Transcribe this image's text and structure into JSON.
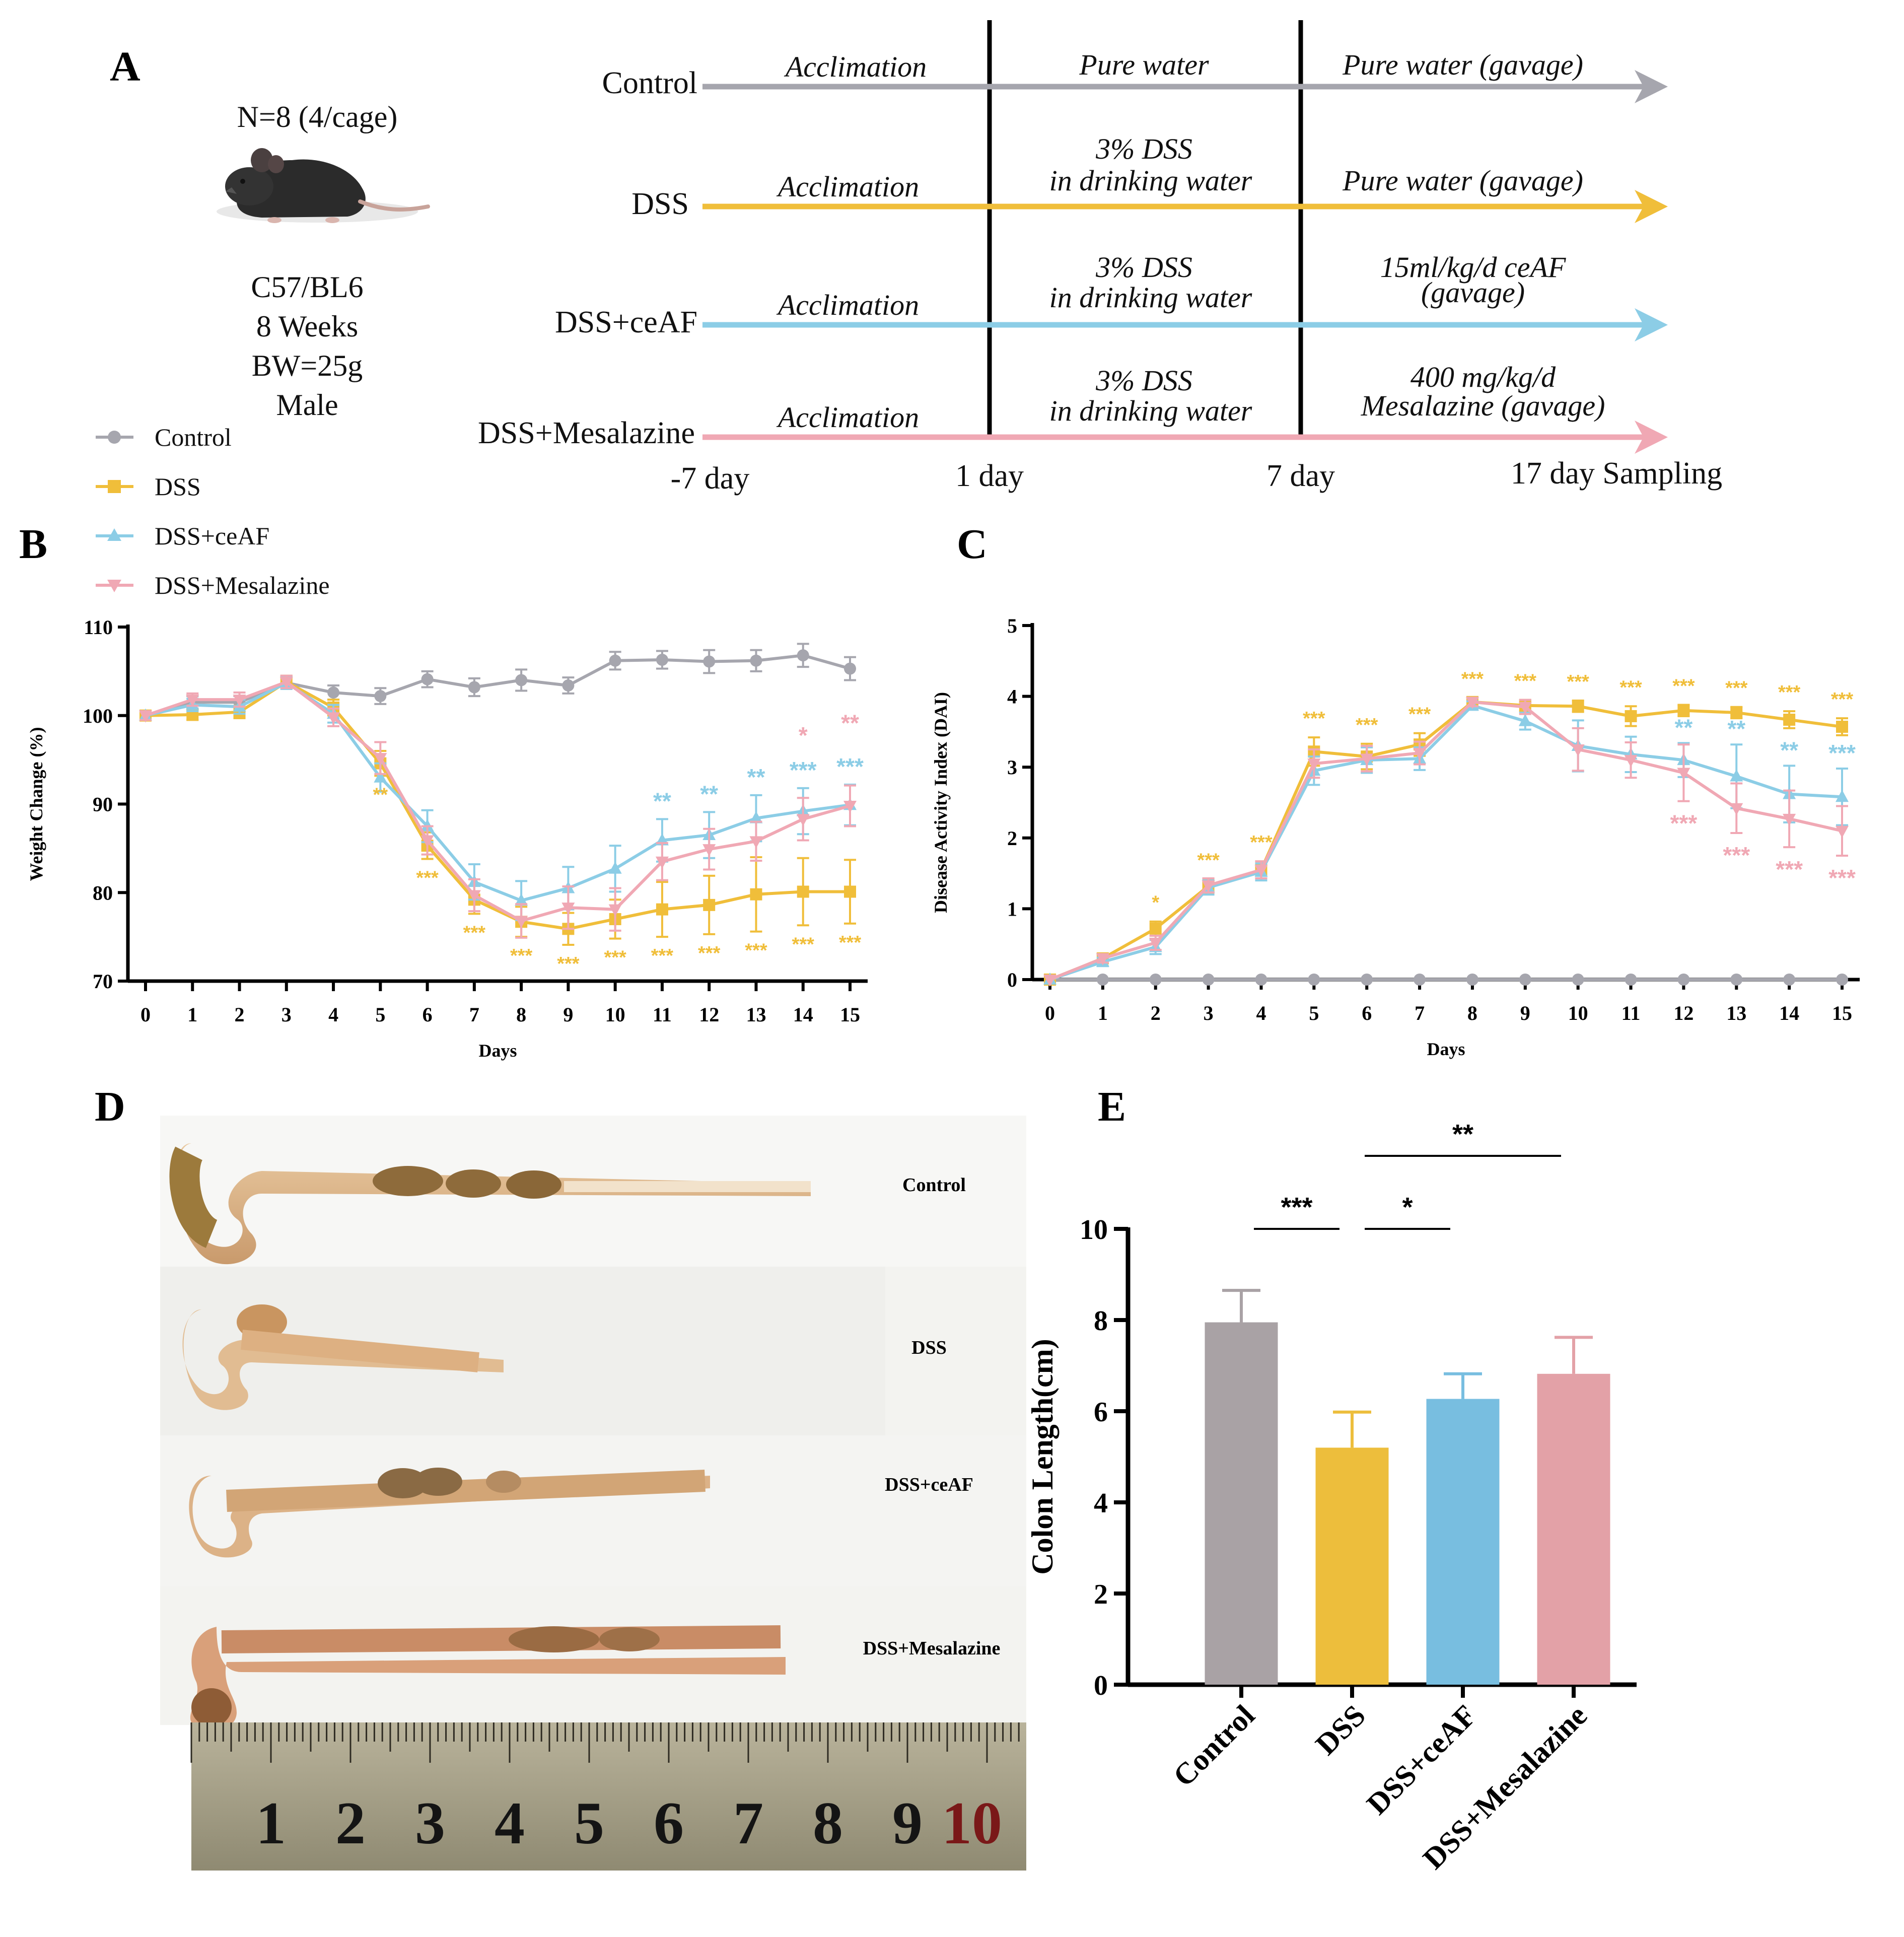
{
  "panels": {
    "a": "A",
    "b": "B",
    "c": "C",
    "d": "D",
    "e": "E"
  },
  "colors": {
    "control": "#A6A6AE",
    "dss": "#F0BE3A",
    "ceaf": "#8CCDE6",
    "mesalazine": "#F0A8B4",
    "control_bar": "#A9A2A5",
    "dss_bar": "#EDBE3C",
    "ceaf_bar": "#78BEE0",
    "mesalazine_bar": "#E3A1A7"
  },
  "design": {
    "mouse": {
      "n": "N=8 (4/cage)",
      "strain": "C57/BL6",
      "age": "8 Weeks",
      "bw": "BW=25g",
      "sex": "Male"
    },
    "rows": [
      {
        "label": "Control",
        "phase1": "Acclimation",
        "phase2": [
          "Pure water"
        ],
        "phase3": [
          "Pure water (gavage)"
        ]
      },
      {
        "label": "DSS",
        "phase1": "Acclimation",
        "phase2": [
          "3% DSS",
          "in drinking water"
        ],
        "phase3": [
          "Pure water (gavage)"
        ]
      },
      {
        "label": "DSS+ceAF",
        "phase1": "Acclimation",
        "phase2": [
          "3% DSS",
          "in drinking water"
        ],
        "phase3": [
          "15ml/kg/d ceAF",
          "(gavage)"
        ]
      },
      {
        "label": "DSS+Mesalazine",
        "phase1": "Acclimation",
        "phase2": [
          "3% DSS",
          "in drinking water"
        ],
        "phase3": [
          "400 mg/kg/d",
          "Mesalazine (gavage)"
        ]
      }
    ],
    "timeline": [
      "-7 day",
      "1 day",
      "7 day",
      "17 day Sampling"
    ]
  },
  "legend": [
    "Control",
    "DSS",
    "DSS+ceAF",
    "DSS+Mesalazine"
  ],
  "chart_data": [
    {
      "type": "line",
      "id": "B",
      "xlabel": "Days",
      "ylabel": "Weight Change (%)",
      "x": [
        0,
        1,
        2,
        3,
        4,
        5,
        6,
        7,
        8,
        9,
        10,
        11,
        12,
        13,
        14,
        15
      ],
      "ylim": [
        70,
        110
      ],
      "yticks": [
        70,
        80,
        90,
        100,
        110
      ],
      "series": [
        {
          "name": "Control",
          "values": [
            100,
            101.5,
            101.5,
            103.7,
            102.6,
            102.2,
            104.1,
            103.2,
            104,
            103.4,
            106.2,
            106.3,
            106.1,
            106.2,
            106.8,
            105.3
          ],
          "errors": [
            0.5,
            0.7,
            0.7,
            0.6,
            0.8,
            0.9,
            0.9,
            1,
            1.2,
            0.9,
            1,
            1,
            1.3,
            1.2,
            1.3,
            1.3
          ]
        },
        {
          "name": "DSS",
          "values": [
            100,
            100.1,
            100.4,
            103.8,
            100.9,
            94.6,
            85.3,
            79.2,
            76.7,
            75.9,
            77,
            78.1,
            78.6,
            79.8,
            80.1,
            80.1
          ],
          "errors": [
            0.5,
            0.6,
            0.7,
            0.7,
            0.9,
            1.4,
            1.5,
            1.6,
            1.7,
            1.8,
            2.2,
            3.1,
            3.3,
            4.2,
            3.8,
            3.6
          ]
        },
        {
          "name": "DSS+ceAF",
          "values": [
            100,
            101.2,
            101,
            103.7,
            100.2,
            93,
            87.5,
            81.2,
            79.1,
            80.5,
            82.7,
            85.9,
            86.5,
            88.4,
            89.2,
            89.9
          ],
          "errors": [
            0.5,
            0.7,
            0.8,
            0.7,
            1,
            1.6,
            1.8,
            2,
            2.2,
            2.4,
            2.6,
            2.4,
            2.6,
            2.6,
            2.6,
            2.3
          ]
        },
        {
          "name": "DSS+Mesalazine",
          "values": [
            100,
            101.8,
            101.8,
            103.8,
            99.8,
            95.2,
            85.9,
            79.7,
            76.8,
            78.3,
            78.1,
            83.5,
            84.9,
            85.8,
            88.3,
            89.8
          ],
          "errors": [
            0.5,
            0.7,
            0.8,
            0.7,
            1,
            1.8,
            1.6,
            1.8,
            1.9,
            2.4,
            2.4,
            2.1,
            2.3,
            2.2,
            2.4,
            2.3
          ]
        }
      ],
      "annotations": [
        {
          "x": 5,
          "rows": [
            {
              "t": "**",
              "c": "dss"
            }
          ]
        },
        {
          "x": 6,
          "rows": [
            {
              "t": "***",
              "c": "dss"
            }
          ]
        },
        {
          "x": 7,
          "rows": [
            {
              "t": "***",
              "c": "dss"
            }
          ]
        },
        {
          "x": 8,
          "rows": [
            {
              "t": "***",
              "c": "dss"
            }
          ]
        },
        {
          "x": 9,
          "rows": [
            {
              "t": "***",
              "c": "dss"
            }
          ]
        },
        {
          "x": 10,
          "rows": [
            {
              "t": "***",
              "c": "dss"
            }
          ]
        },
        {
          "x": 11,
          "rows": [
            {
              "t": "***",
              "c": "dss"
            }
          ]
        },
        {
          "x": 12,
          "rows": [
            {
              "t": "***",
              "c": "dss"
            }
          ]
        },
        {
          "x": 13,
          "rows": [
            {
              "t": "***",
              "c": "dss"
            }
          ]
        },
        {
          "x": 14,
          "rows": [
            {
              "t": "***",
              "c": "dss"
            }
          ]
        },
        {
          "x": 15,
          "rows": [
            {
              "t": "***",
              "c": "dss"
            }
          ]
        },
        {
          "x": 11,
          "rows": [
            {
              "t": "**",
              "c": "ceaf"
            }
          ]
        },
        {
          "x": 12,
          "rows": [
            {
              "t": "**",
              "c": "ceaf"
            }
          ]
        },
        {
          "x": 13,
          "rows": [
            {
              "t": "**",
              "c": "ceaf"
            }
          ]
        },
        {
          "x": 14,
          "rows": [
            {
              "t": "***",
              "c": "ceaf"
            },
            {
              "t": "*",
              "c": "mesalazine"
            }
          ]
        },
        {
          "x": 15,
          "rows": [
            {
              "t": "***",
              "c": "ceaf"
            },
            {
              "t": "**",
              "c": "mesalazine"
            }
          ]
        }
      ]
    },
    {
      "type": "line",
      "id": "C",
      "xlabel": "Days",
      "ylabel": "Disease Activity Index  (DAI)",
      "x": [
        0,
        1,
        2,
        3,
        4,
        5,
        6,
        7,
        8,
        9,
        10,
        11,
        12,
        13,
        14,
        15
      ],
      "ylim": [
        0,
        5
      ],
      "yticks": [
        0,
        1,
        2,
        3,
        4,
        5
      ],
      "series": [
        {
          "name": "Control",
          "values": [
            0,
            0,
            0,
            0,
            0,
            0,
            0,
            0,
            0,
            0,
            0,
            0,
            0,
            0,
            0,
            0
          ],
          "errors": [
            0,
            0,
            0,
            0,
            0,
            0,
            0,
            0,
            0,
            0,
            0,
            0,
            0,
            0,
            0,
            0
          ]
        },
        {
          "name": "DSS",
          "values": [
            0,
            0.3,
            0.72,
            1.32,
            1.55,
            3.22,
            3.15,
            3.32,
            3.92,
            3.87,
            3.86,
            3.72,
            3.8,
            3.77,
            3.67,
            3.57
          ],
          "errors": [
            0,
            0.06,
            0.1,
            0.1,
            0.12,
            0.2,
            0.18,
            0.16,
            0.06,
            0.08,
            0.08,
            0.14,
            0.08,
            0.08,
            0.12,
            0.12
          ]
        },
        {
          "name": "DSS+ceAF",
          "values": [
            0,
            0.25,
            0.46,
            1.3,
            1.52,
            2.95,
            3.1,
            3.12,
            3.87,
            3.65,
            3.3,
            3.18,
            3.1,
            2.87,
            2.62,
            2.58
          ],
          "errors": [
            0,
            0.06,
            0.1,
            0.1,
            0.12,
            0.2,
            0.18,
            0.16,
            0.06,
            0.12,
            0.36,
            0.25,
            0.24,
            0.45,
            0.4,
            0.4
          ]
        },
        {
          "name": "DSS+Mesalazine",
          "values": [
            0,
            0.3,
            0.52,
            1.33,
            1.55,
            3.05,
            3.12,
            3.2,
            3.92,
            3.85,
            3.25,
            3.1,
            2.92,
            2.42,
            2.27,
            2.1
          ],
          "errors": [
            0,
            0.06,
            0.1,
            0.1,
            0.12,
            0.2,
            0.18,
            0.16,
            0.06,
            0.1,
            0.3,
            0.25,
            0.4,
            0.35,
            0.4,
            0.35
          ]
        }
      ],
      "annotations": [
        {
          "x": 2,
          "rows": [
            {
              "t": "*",
              "c": "dss"
            }
          ]
        },
        {
          "x": 3,
          "rows": [
            {
              "t": "***",
              "c": "dss"
            }
          ]
        },
        {
          "x": 4,
          "rows": [
            {
              "t": "***",
              "c": "dss"
            }
          ]
        },
        {
          "x": 5,
          "rows": [
            {
              "t": "***",
              "c": "dss"
            }
          ]
        },
        {
          "x": 6,
          "rows": [
            {
              "t": "***",
              "c": "dss"
            }
          ]
        },
        {
          "x": 7,
          "rows": [
            {
              "t": "***",
              "c": "dss"
            }
          ]
        },
        {
          "x": 8,
          "rows": [
            {
              "t": "***",
              "c": "dss"
            }
          ]
        },
        {
          "x": 9,
          "rows": [
            {
              "t": "***",
              "c": "dss"
            }
          ]
        },
        {
          "x": 10,
          "rows": [
            {
              "t": "***",
              "c": "dss"
            }
          ]
        },
        {
          "x": 11,
          "rows": [
            {
              "t": "***",
              "c": "dss"
            }
          ]
        },
        {
          "x": 12,
          "rows": [
            {
              "t": "***",
              "c": "dss"
            }
          ]
        },
        {
          "x": 13,
          "rows": [
            {
              "t": "***",
              "c": "dss"
            }
          ]
        },
        {
          "x": 14,
          "rows": [
            {
              "t": "***",
              "c": "dss"
            }
          ]
        },
        {
          "x": 15,
          "rows": [
            {
              "t": "***",
              "c": "dss"
            }
          ]
        },
        {
          "x": 12,
          "rows": [
            {
              "t": "**",
              "c": "ceaf"
            }
          ]
        },
        {
          "x": 13,
          "rows": [
            {
              "t": "**",
              "c": "ceaf"
            }
          ]
        },
        {
          "x": 14,
          "rows": [
            {
              "t": "**",
              "c": "ceaf"
            }
          ]
        },
        {
          "x": 15,
          "rows": [
            {
              "t": "***",
              "c": "ceaf"
            }
          ]
        },
        {
          "x": 12,
          "rows": [
            {
              "t": "***",
              "c": "mesalazine"
            }
          ]
        },
        {
          "x": 13,
          "rows": [
            {
              "t": "***",
              "c": "mesalazine"
            }
          ]
        },
        {
          "x": 14,
          "rows": [
            {
              "t": "***",
              "c": "mesalazine"
            }
          ]
        },
        {
          "x": 15,
          "rows": [
            {
              "t": "***",
              "c": "mesalazine"
            }
          ]
        }
      ]
    },
    {
      "type": "bar",
      "id": "E",
      "ylabel": "Colon Length(cm)",
      "categories": [
        "Control",
        "DSS",
        "DSS+ceAF",
        "DSS+Mesalazine"
      ],
      "values": [
        7.95,
        5.2,
        6.27,
        6.82
      ],
      "errors": [
        0.7,
        0.78,
        0.55,
        0.8
      ],
      "ylim": [
        0,
        10
      ],
      "yticks": [
        0,
        2,
        4,
        6,
        8,
        10
      ],
      "comparisons": [
        {
          "from": 0,
          "to": 1,
          "label": "***"
        },
        {
          "from": 1,
          "to": 2,
          "label": "*"
        },
        {
          "from": 1,
          "to": 3,
          "label": "**"
        }
      ]
    }
  ],
  "photo": {
    "labels": [
      "Control",
      "DSS",
      "DSS+ceAF",
      "DSS+Mesalazine"
    ],
    "ruler_numbers": [
      "1",
      "2",
      "3",
      "4",
      "5",
      "6",
      "7",
      "8",
      "9",
      "10"
    ]
  }
}
